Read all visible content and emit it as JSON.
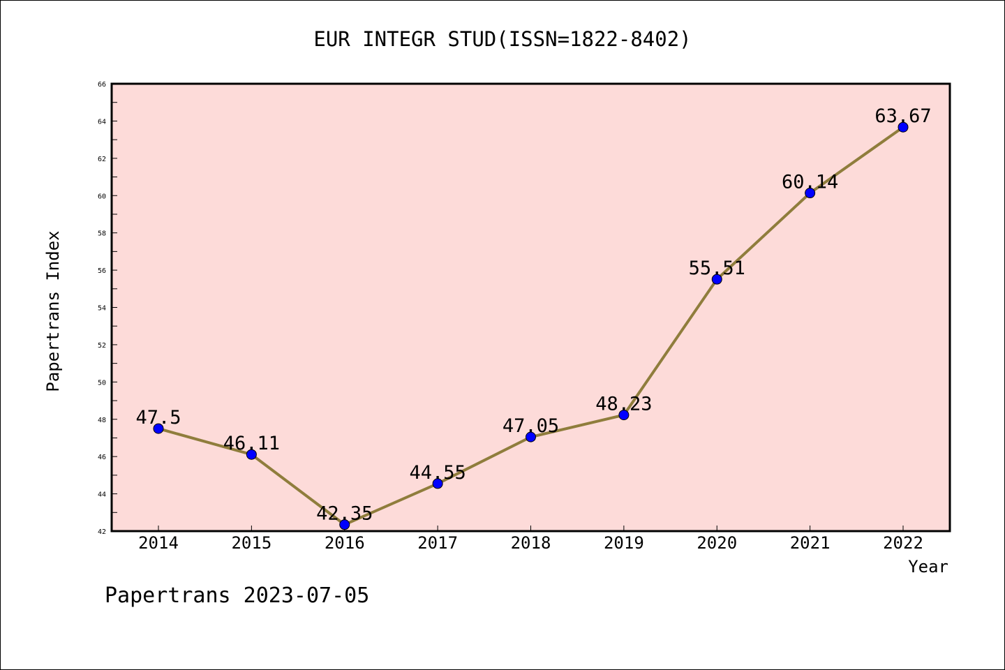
{
  "chart_data": {
    "type": "line",
    "title": "EUR INTEGR STUD(ISSN=1822-8402)",
    "xlabel": "Year",
    "ylabel": "Papertrans Index",
    "x": [
      "2014",
      "2015",
      "2016",
      "2017",
      "2018",
      "2019",
      "2020",
      "2021",
      "2022"
    ],
    "series": [
      {
        "values": [
          47.5,
          46.11,
          42.35,
          44.55,
          47.05,
          48.23,
          55.51,
          60.14,
          63.67
        ],
        "labels": [
          "47.5",
          "46.11",
          "42.35",
          "44.55",
          "47.05",
          "48.23",
          "55.51",
          "60.14",
          "63.67"
        ]
      }
    ],
    "ylim": [
      42,
      66
    ],
    "yticks": [
      "42",
      "44",
      "46",
      "48",
      "50",
      "52",
      "54",
      "56",
      "58",
      "60",
      "62",
      "64",
      "66"
    ],
    "grid": false,
    "colors": {
      "plot_background": "#fddbd9",
      "line": "#8f7d3c",
      "marker": "#0000ff"
    }
  },
  "footer": "Papertrans 2023-07-05"
}
